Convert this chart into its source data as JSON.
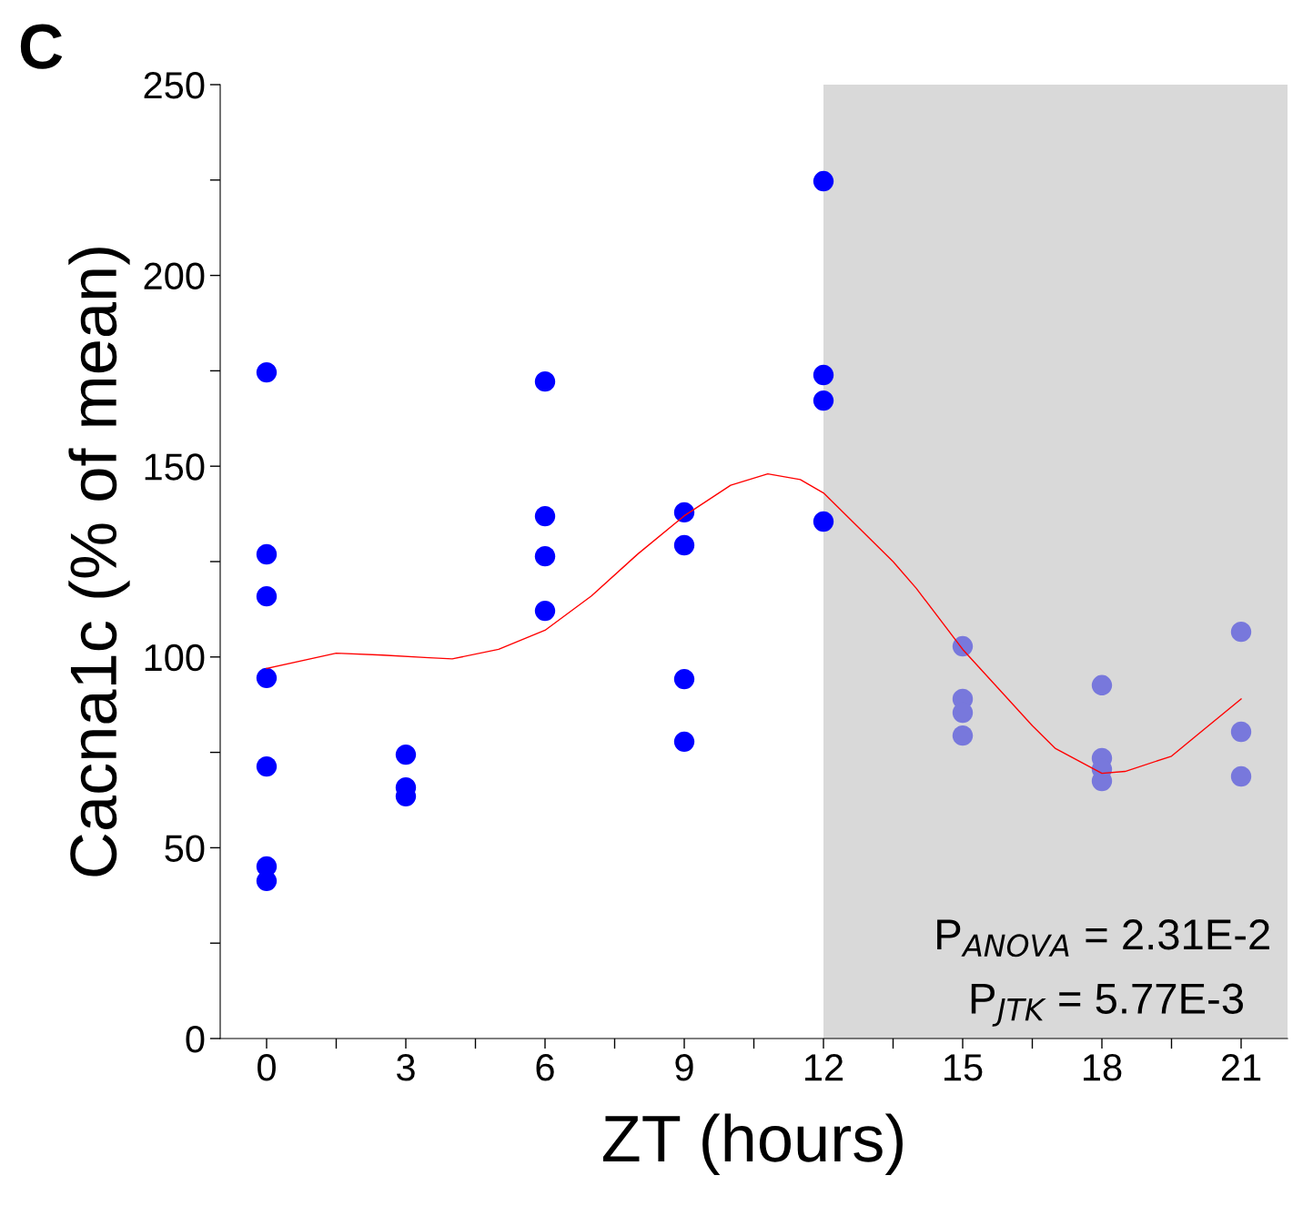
{
  "chart_data": {
    "type": "scatter",
    "title": "C",
    "xlabel": "ZT (hours)",
    "ylabel": "Cacna1c (% of mean)",
    "xlim": [
      -1,
      22
    ],
    "ylim": [
      0,
      250
    ],
    "xticks": [
      0,
      {
        "value": 1.5,
        "label": null
      },
      3,
      {
        "value": 4.5,
        "label": null
      },
      6,
      {
        "value": 7.5,
        "label": null
      },
      9,
      {
        "value": 10.5,
        "label": null
      },
      12,
      {
        "value": 13.5,
        "label": null
      },
      15,
      {
        "value": 16.5,
        "label": null
      },
      18,
      {
        "value": 19.5,
        "label": null
      },
      21
    ],
    "yticks": [
      0,
      {
        "value": 25,
        "label": null
      },
      50,
      {
        "value": 75,
        "label": null
      },
      100,
      {
        "value": 125,
        "label": null
      },
      150,
      {
        "value": 175,
        "label": null
      },
      200,
      {
        "value": 225,
        "label": null
      },
      250
    ],
    "grid": false,
    "legend": false,
    "marker": "circle",
    "series": [
      {
        "color": "#0000ff",
        "x": [
          0,
          0,
          0,
          0,
          0,
          0,
          0,
          3,
          3,
          3,
          6,
          6,
          6,
          6,
          9,
          9,
          9,
          9,
          12,
          12,
          12,
          12
        ],
        "values": [
          174.6,
          126.9,
          115.9,
          94.5,
          71.3,
          45.1,
          41.3,
          74.4,
          65.8,
          63.5,
          172.2,
          136.9,
          126.4,
          112.1,
          137.9,
          129.3,
          94.2,
          77.8,
          224.7,
          173.9,
          167.2,
          135.5
        ]
      },
      {
        "color": "#7878dc",
        "x": [
          15,
          15,
          15,
          15,
          18,
          18,
          18,
          18,
          21,
          21,
          21
        ],
        "values": [
          102.8,
          89.0,
          85.4,
          79.4,
          92.6,
          73.5,
          70.6,
          67.5,
          106.6,
          80.4,
          68.7
        ]
      },
      {
        "type": "line",
        "color": "#ff0000",
        "marker": "none",
        "x": [
          0,
          1.5,
          2.5,
          3.5,
          4,
          5,
          6,
          7,
          8,
          9,
          10,
          10.8,
          11.5,
          12,
          13.5,
          14,
          15,
          16.5,
          17,
          18,
          18.5,
          19.5,
          20,
          21
        ],
        "values": [
          97,
          101,
          100.5,
          99.8,
          99.5,
          102,
          107,
          116,
          127,
          137,
          145,
          148,
          146.5,
          143,
          125,
          118,
          102,
          82,
          76,
          69.5,
          70,
          74,
          79,
          89
        ]
      }
    ],
    "bands": [
      {
        "axis": "x",
        "from": 12,
        "to": 22,
        "color": "#d9d9d9"
      }
    ],
    "annotations": [
      "P$_{ANOVA}$ = 2.31E-2",
      "P$_{JTK}$ = 5.77E-3"
    ]
  }
}
